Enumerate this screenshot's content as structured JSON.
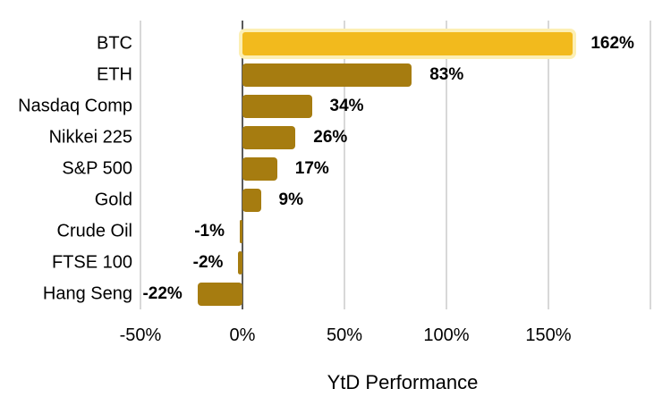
{
  "chart_data": {
    "type": "bar",
    "orientation": "horizontal",
    "title": "",
    "xlabel": "YtD Performance",
    "ylabel": "",
    "categories": [
      "BTC",
      "ETH",
      "Nasdaq Comp",
      "Nikkei 225",
      "S&P 500",
      "Gold",
      "Crude Oil",
      "FTSE 100",
      "Hang Seng"
    ],
    "values": [
      162,
      83,
      34,
      26,
      17,
      9,
      -1,
      -2,
      -22
    ],
    "value_labels": [
      "162%",
      "83%",
      "34%",
      "26%",
      "17%",
      "9%",
      "-1%",
      "-2%",
      "-22%"
    ],
    "xlim": [
      -50,
      200
    ],
    "grid": true,
    "legend": false,
    "highlight_category": "BTC",
    "x_ticks": [
      {
        "value": -50,
        "label": "-50%"
      },
      {
        "value": 0,
        "label": "0%"
      },
      {
        "value": 50,
        "label": "50%"
      },
      {
        "value": 100,
        "label": "100%"
      },
      {
        "value": 150,
        "label": "150%"
      },
      {
        "value": 200,
        "label": ""
      }
    ],
    "colors": {
      "bar": "#A67C10",
      "highlight_bar": "#F2BA1D",
      "highlight_halo": "#FCEFB4",
      "gridline": "#D8D8D8",
      "zero_line": "#5A5A5A",
      "text": "#000000",
      "background": "#FFFFFF"
    }
  }
}
